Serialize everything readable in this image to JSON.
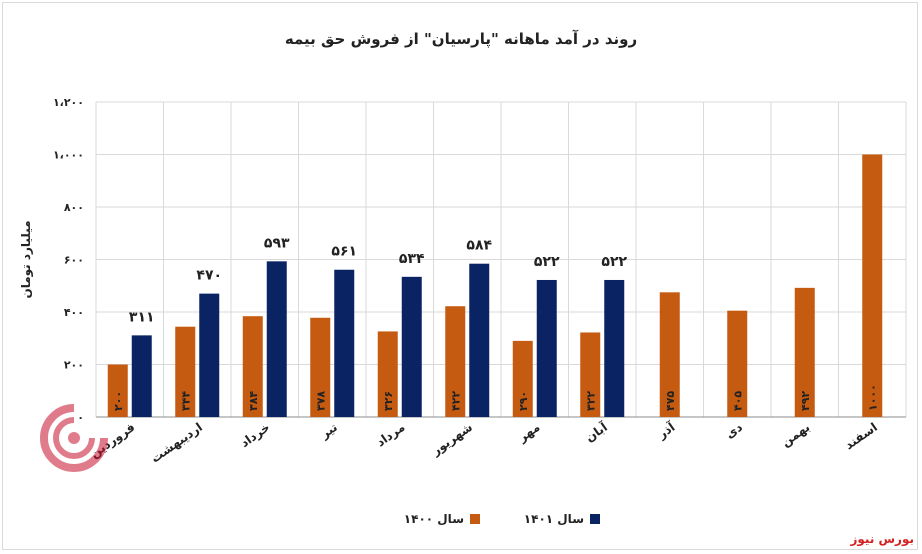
{
  "chart_data": {
    "type": "bar",
    "title": "روند در آمد ماهانه \"پارسیان\" از فروش حق بیمه",
    "ylabel": "میلیارد تومان",
    "ylim": [
      0,
      1200
    ],
    "yticks": [
      "۰",
      "۲۰۰",
      "۴۰۰",
      "۶۰۰",
      "۸۰۰",
      "۱،۰۰۰",
      "۱،۲۰۰"
    ],
    "ytick_values": [
      0,
      200,
      400,
      600,
      800,
      1000,
      1200
    ],
    "grid": true,
    "legend_position": "bottom",
    "categories": [
      "فروردین",
      "اردیبهشت",
      "خرداد",
      "تیر",
      "مرداد",
      "شهریور",
      "مهر",
      "آبان",
      "آذر",
      "دی",
      "بهمن",
      "اسفند"
    ],
    "series": [
      {
        "name": "سال ۱۴۰۰",
        "color": "#c55a11",
        "values": [
          200,
          344,
          384,
          378,
          326,
          422,
          290,
          322,
          475,
          405,
          492,
          1000
        ],
        "labels": [
          "۲۰۰",
          "۳۴۴",
          "۳۸۴",
          "۳۷۸",
          "۳۲۶",
          "۴۲۲",
          "۲۹۰",
          "۳۲۲",
          "۴۷۵",
          "۴۰۵",
          "۴۹۲",
          "۱۰۰۰"
        ]
      },
      {
        "name": "سال ۱۴۰۱",
        "color": "#0a2463",
        "values": [
          311,
          470,
          593,
          561,
          534,
          584,
          522,
          522,
          null,
          null,
          null,
          null
        ],
        "labels": [
          "۳۱۱",
          "۴۷۰",
          "۵۹۳",
          "۵۶۱",
          "۵۳۴",
          "۵۸۴",
          "۵۲۲",
          "۵۲۲",
          "",
          "",
          "",
          ""
        ]
      }
    ]
  },
  "watermark_text": "بورس نیوز",
  "source_text": "بورس نیوز",
  "colors": {
    "grid": "#d9d9d9",
    "axis": "#8c8c8c",
    "watermark": "#c8102e",
    "source": "#d42020"
  }
}
